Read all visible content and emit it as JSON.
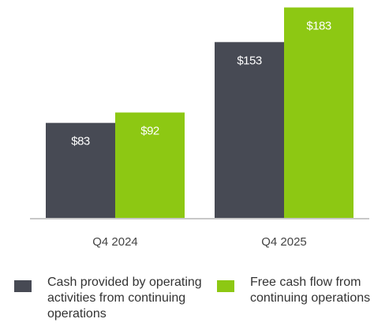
{
  "chart_data": {
    "type": "bar",
    "categories": [
      "Q4 2024",
      "Q4 2025"
    ],
    "series": [
      {
        "name": "Cash provided by operating activities from continuing operations",
        "color": "#474a54",
        "values": [
          83,
          153
        ],
        "value_labels": [
          "$83",
          "$153"
        ]
      },
      {
        "name": "Free cash flow from continuing operations",
        "color": "#8dc813",
        "values": [
          92,
          183
        ],
        "value_labels": [
          "$92",
          "$183"
        ]
      }
    ],
    "ylim": [
      0,
      184
    ]
  }
}
